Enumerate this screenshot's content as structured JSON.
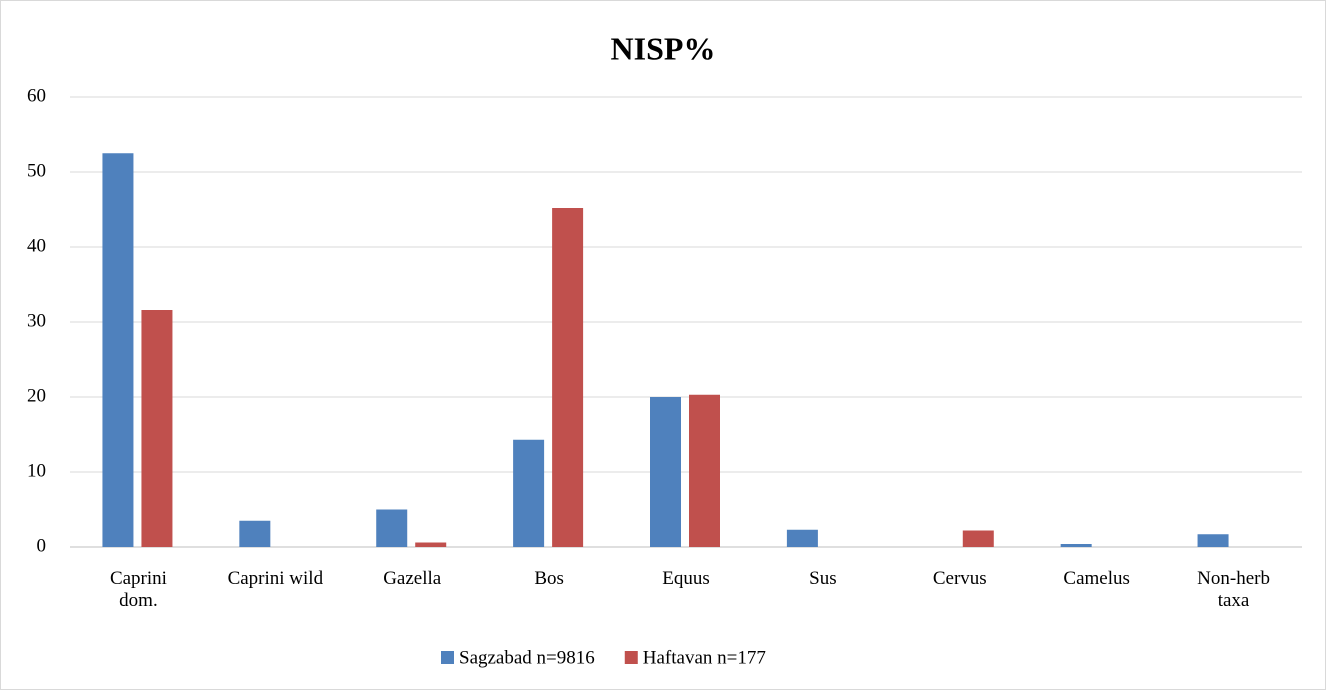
{
  "chart_data": {
    "type": "bar",
    "title": "NISP%",
    "categories": [
      "Caprini dom.",
      "Caprini wild",
      "Gazella",
      "Bos",
      "Equus",
      "Sus",
      "Cervus",
      "Camelus",
      "Non-herb taxa"
    ],
    "series": [
      {
        "name": "Sagzabad n=9816",
        "color": "#4f81bd",
        "values": [
          52.5,
          3.5,
          5,
          14.3,
          20,
          2.3,
          0,
          0.4,
          1.7
        ]
      },
      {
        "name": "Haftavan n=177",
        "color": "#c0504d",
        "values": [
          31.6,
          0,
          0.6,
          45.2,
          20.3,
          0,
          2.2,
          0,
          0
        ]
      }
    ],
    "ylim": [
      0,
      60
    ],
    "yticks": [
      0,
      10,
      20,
      30,
      40,
      50,
      60
    ],
    "grid": true,
    "legend": "bottom"
  }
}
